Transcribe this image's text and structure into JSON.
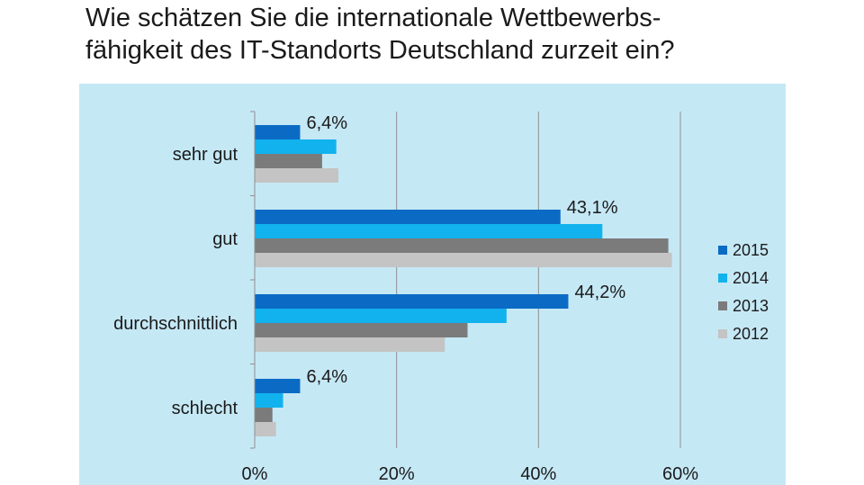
{
  "title_lines": [
    "Wie schätzen Sie die internationale Wettbewerbs-",
    "fähigkeit des IT-Standorts Deutschland zurzeit ein?"
  ],
  "colors": {
    "background": "#c5e8f5",
    "grid": "#8f8f8f",
    "series": [
      "#0b6bc4",
      "#12b2ee",
      "#7b7b7b",
      "#c4c4c4"
    ]
  },
  "chart_data": {
    "type": "bar",
    "orientation": "horizontal",
    "title": "Wie schätzen Sie die internationale Wettbewerbsfähigkeit des IT-Standorts Deutschland zurzeit ein?",
    "categories": [
      "sehr gut",
      "gut",
      "durchschnittlich",
      "schlecht"
    ],
    "series": [
      {
        "name": "2015",
        "values": [
          6.4,
          43.1,
          44.2,
          6.4
        ]
      },
      {
        "name": "2014",
        "values": [
          11.5,
          49.0,
          35.5,
          4.0
        ]
      },
      {
        "name": "2013",
        "values": [
          9.5,
          58.3,
          30.0,
          2.5
        ]
      },
      {
        "name": "2012",
        "values": [
          11.8,
          58.8,
          26.8,
          3.0
        ]
      }
    ],
    "data_labels": [
      {
        "category": "sehr gut",
        "series": "2015",
        "text": "6,4%"
      },
      {
        "category": "gut",
        "series": "2015",
        "text": "43,1%"
      },
      {
        "category": "durchschnittlich",
        "series": "2015",
        "text": "44,2%"
      },
      {
        "category": "schlecht",
        "series": "2015",
        "text": "6,4%"
      }
    ],
    "xlim": [
      0,
      60
    ],
    "xticks": [
      0,
      20,
      40,
      60
    ],
    "xtick_labels": [
      "0%",
      "20%",
      "40%",
      "60%"
    ],
    "grid": true,
    "legend_position": "right"
  }
}
